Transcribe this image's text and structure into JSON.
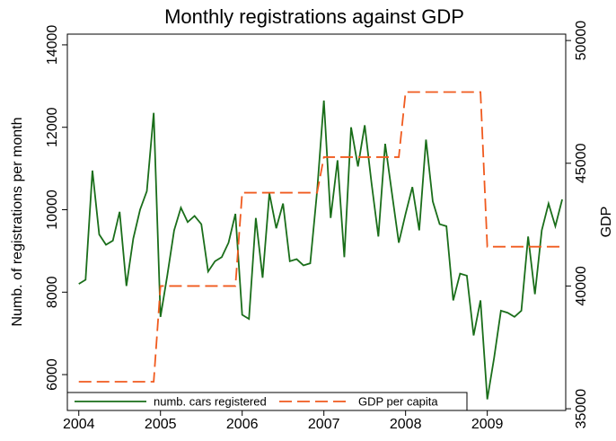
{
  "chart_data": {
    "type": "line",
    "title": "Monthly registrations against GDP",
    "ylabel": "Numb. of registrations per month",
    "y2label": "GDP",
    "x": [
      2004,
      2004.083,
      2004.167,
      2004.25,
      2004.333,
      2004.417,
      2004.5,
      2004.583,
      2004.667,
      2004.75,
      2004.833,
      2004.917,
      2005,
      2005.083,
      2005.167,
      2005.25,
      2005.333,
      2005.417,
      2005.5,
      2005.583,
      2005.667,
      2005.75,
      2005.833,
      2005.917,
      2006,
      2006.083,
      2006.167,
      2006.25,
      2006.333,
      2006.417,
      2006.5,
      2006.583,
      2006.667,
      2006.75,
      2006.833,
      2006.917,
      2007,
      2007.083,
      2007.167,
      2007.25,
      2007.333,
      2007.417,
      2007.5,
      2007.583,
      2007.667,
      2007.75,
      2007.833,
      2007.917,
      2008,
      2008.083,
      2008.167,
      2008.25,
      2008.333,
      2008.417,
      2008.5,
      2008.583,
      2008.667,
      2008.75,
      2008.833,
      2008.917,
      2009,
      2009.083,
      2009.167,
      2009.25,
      2009.333,
      2009.417,
      2009.5,
      2009.583,
      2009.667,
      2009.75,
      2009.833,
      2009.917
    ],
    "series": [
      {
        "name": "numb. cars registered",
        "color": "#1a6e1a",
        "dash": false,
        "values": [
          8200,
          8300,
          10950,
          9400,
          9150,
          9250,
          9950,
          8150,
          9300,
          10000,
          10450,
          12350,
          7400,
          8400,
          9500,
          10050,
          9700,
          9850,
          9650,
          8500,
          8750,
          8850,
          9200,
          9900,
          7450,
          7350,
          9800,
          8350,
          10400,
          9550,
          10150,
          8750,
          8800,
          8650,
          8700,
          10450,
          12650,
          9800,
          11200,
          8850,
          12000,
          11050,
          12050,
          10650,
          9350,
          11600,
          10400,
          9200,
          9900,
          10550,
          9500,
          11700,
          10200,
          9650,
          9600,
          7800,
          8450,
          8400,
          6950,
          7800,
          5400,
          6400,
          7550,
          7500,
          7400,
          7550,
          9350,
          7950,
          9500,
          10150,
          9600,
          10250
        ]
      },
      {
        "name": "GDP per capita",
        "color": "#f05a1e",
        "dash": true,
        "axis": "y2",
        "values": [
          36100,
          36100,
          36100,
          36100,
          36100,
          36100,
          36100,
          36100,
          36100,
          36100,
          36100,
          36100,
          40000,
          40000,
          40000,
          40000,
          40000,
          40000,
          40000,
          40000,
          40000,
          40000,
          40000,
          40000,
          43800,
          43800,
          43800,
          43800,
          43800,
          43800,
          43800,
          43800,
          43800,
          43800,
          43800,
          43800,
          45250,
          45250,
          45250,
          45250,
          45250,
          45250,
          45250,
          45250,
          45250,
          45250,
          45250,
          45250,
          47900,
          47900,
          47900,
          47900,
          47900,
          47900,
          47900,
          47900,
          47900,
          47900,
          47900,
          47900,
          41600,
          41600,
          41600,
          41600,
          41600,
          41600,
          41600,
          41600,
          41600,
          41600,
          41600,
          41600
        ]
      }
    ],
    "xlim": [
      2003.86,
      2009.96
    ],
    "xticks": [
      2004,
      2005,
      2006,
      2007,
      2008,
      2009
    ],
    "ylim": [
      5130,
      14260
    ],
    "yticks": [
      6000,
      8000,
      10000,
      12000,
      14000
    ],
    "y2lim": [
      34930,
      50260
    ],
    "y2ticks": [
      35000,
      40000,
      45000,
      50000
    ],
    "legend": "bottom"
  }
}
